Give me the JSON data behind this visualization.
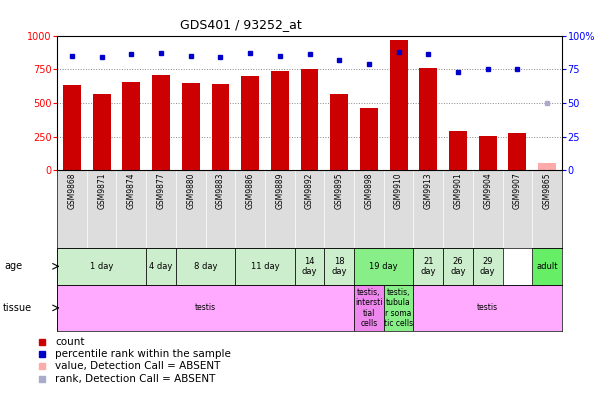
{
  "title": "GDS401 / 93252_at",
  "samples": [
    "GSM9868",
    "GSM9871",
    "GSM9874",
    "GSM9877",
    "GSM9880",
    "GSM9883",
    "GSM9886",
    "GSM9889",
    "GSM9892",
    "GSM9895",
    "GSM9898",
    "GSM9910",
    "GSM9913",
    "GSM9901",
    "GSM9904",
    "GSM9907",
    "GSM9865"
  ],
  "count_values": [
    630,
    565,
    655,
    710,
    645,
    640,
    700,
    740,
    750,
    570,
    465,
    970,
    760,
    295,
    255,
    275,
    55
  ],
  "count_absent": [
    false,
    false,
    false,
    false,
    false,
    false,
    false,
    false,
    false,
    false,
    false,
    false,
    false,
    false,
    false,
    false,
    true
  ],
  "percentile_values": [
    85,
    84,
    86,
    87,
    85,
    84,
    87,
    85,
    86,
    82,
    79,
    88,
    86,
    73,
    75,
    75,
    50
  ],
  "percentile_absent": [
    false,
    false,
    false,
    false,
    false,
    false,
    false,
    false,
    false,
    false,
    false,
    false,
    false,
    false,
    false,
    false,
    true
  ],
  "ylim_left": [
    0,
    1000
  ],
  "ylim_right": [
    0,
    100
  ],
  "yticks_left": [
    0,
    250,
    500,
    750,
    1000
  ],
  "yticks_right": [
    0,
    25,
    50,
    75,
    100
  ],
  "bar_color": "#cc0000",
  "bar_absent_color": "#ffaaaa",
  "dot_color": "#0000cc",
  "dot_absent_color": "#aaaacc",
  "age_groups": [
    {
      "label": "1 day",
      "start": 0,
      "end": 2,
      "color": "#cceecc"
    },
    {
      "label": "4 day",
      "start": 3,
      "end": 3,
      "color": "#cceecc"
    },
    {
      "label": "8 day",
      "start": 4,
      "end": 5,
      "color": "#cceecc"
    },
    {
      "label": "11 day",
      "start": 6,
      "end": 7,
      "color": "#cceecc"
    },
    {
      "label": "14\nday",
      "start": 8,
      "end": 8,
      "color": "#cceecc"
    },
    {
      "label": "18\nday",
      "start": 9,
      "end": 9,
      "color": "#cceecc"
    },
    {
      "label": "19 day",
      "start": 10,
      "end": 11,
      "color": "#88ee88"
    },
    {
      "label": "21\nday",
      "start": 12,
      "end": 12,
      "color": "#cceecc"
    },
    {
      "label": "26\nday",
      "start": 13,
      "end": 13,
      "color": "#cceecc"
    },
    {
      "label": "29\nday",
      "start": 14,
      "end": 14,
      "color": "#cceecc"
    },
    {
      "label": "adult",
      "start": 16,
      "end": 16,
      "color": "#66ee66"
    }
  ],
  "tissue_groups": [
    {
      "label": "testis",
      "start": 0,
      "end": 9,
      "color": "#ffaaff"
    },
    {
      "label": "testis,\nintersti\ntial\ncells",
      "start": 10,
      "end": 10,
      "color": "#ee88ee"
    },
    {
      "label": "testis,\ntubula\nr soma\ntic cells",
      "start": 11,
      "end": 11,
      "color": "#88ee88"
    },
    {
      "label": "testis",
      "start": 12,
      "end": 16,
      "color": "#ffaaff"
    }
  ],
  "grid_color": "#888888",
  "background_color": "#ffffff",
  "label_bg_color": "#dddddd"
}
